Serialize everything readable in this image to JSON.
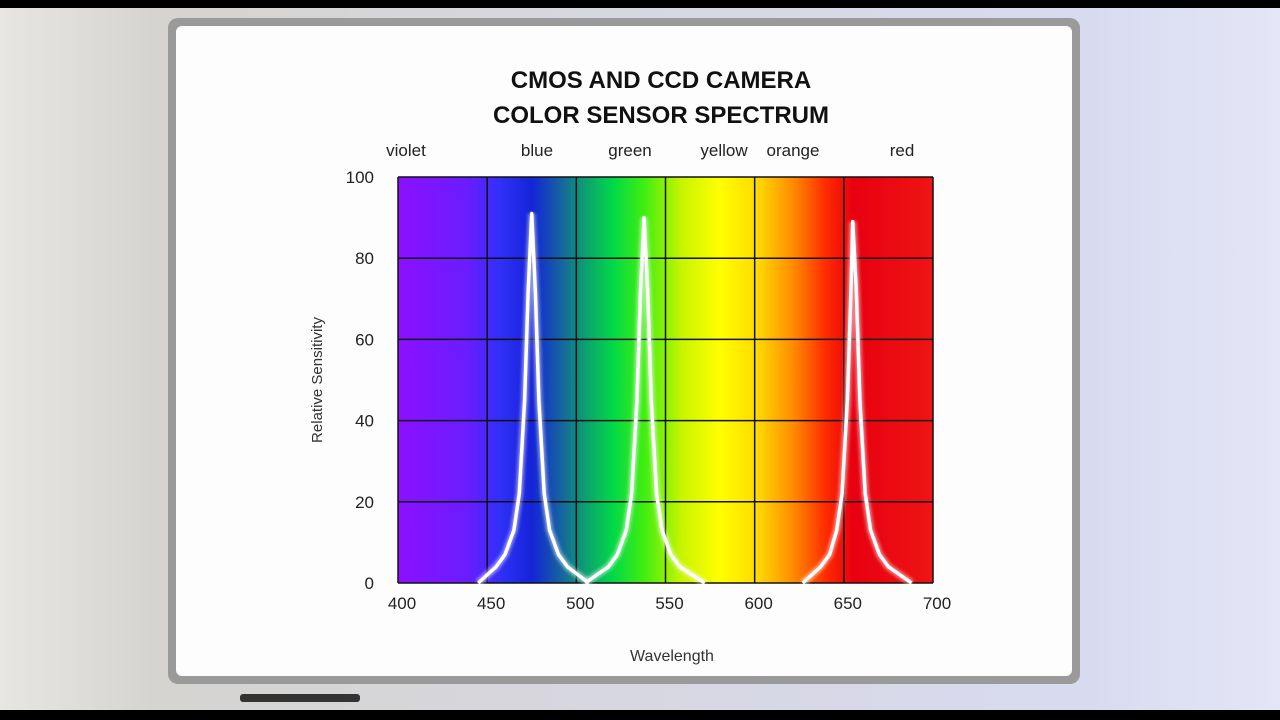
{
  "chart_data": {
    "type": "line",
    "title": [
      "CMOS AND CCD CAMERA",
      "COLOR SENSOR SPECTRUM"
    ],
    "band_labels": [
      "violet",
      "blue",
      "green",
      "yellow",
      "orange",
      "red"
    ],
    "x_label": "Wavelength",
    "y_label": "Relative Sensitivity",
    "xlim": [
      400,
      700
    ],
    "xticks": [
      400,
      450,
      500,
      550,
      600,
      650,
      700
    ],
    "ylim": [
      0,
      100
    ],
    "yticks": [
      0,
      20,
      40,
      60,
      80,
      100
    ],
    "grid": true,
    "series": [
      {
        "color": "#ffffff",
        "x": [
          445,
          455,
          460,
          465,
          468,
          471,
          473,
          475,
          477,
          479,
          482,
          485,
          490,
          495,
          507
        ],
        "values": [
          0,
          4,
          7,
          13,
          22,
          45,
          72,
          91,
          72,
          45,
          22,
          13,
          7,
          4,
          0
        ]
      },
      {
        "color": "#ffffff",
        "x": [
          505,
          518,
          523,
          528,
          531,
          534,
          536,
          538,
          540,
          542,
          545,
          548,
          553,
          558,
          572
        ],
        "values": [
          0,
          4,
          7,
          13,
          22,
          45,
          72,
          90,
          72,
          45,
          22,
          13,
          7,
          4,
          0
        ]
      },
      {
        "color": "#ffffff",
        "x": [
          627,
          637,
          642,
          646,
          649,
          652,
          654,
          655,
          657,
          659,
          662,
          665,
          670,
          675,
          688
        ],
        "values": [
          0,
          4,
          7,
          13,
          22,
          45,
          72,
          89,
          72,
          45,
          22,
          13,
          7,
          4,
          0
        ]
      }
    ]
  }
}
